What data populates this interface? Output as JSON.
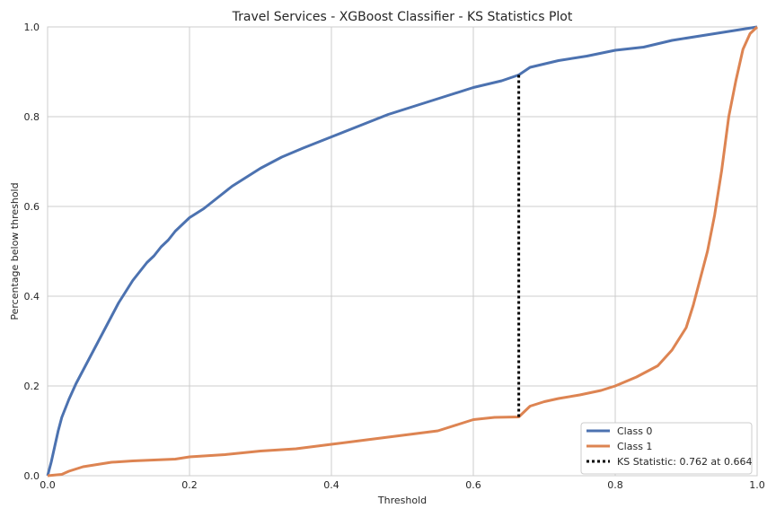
{
  "chart_data": {
    "type": "line",
    "title": "Travel Services - XGBoost Classifier - KS Statistics Plot",
    "xlabel": "Threshold",
    "ylabel": "Percentage below threshold",
    "xlim": [
      0,
      1
    ],
    "ylim": [
      0,
      1
    ],
    "xticks": [
      "0.0",
      "0.2",
      "0.4",
      "0.6",
      "0.8",
      "1.0"
    ],
    "yticks": [
      "0.0",
      "0.2",
      "0.4",
      "0.6",
      "0.8",
      "1.0"
    ],
    "grid": true,
    "legend_position": "lower-right",
    "series": [
      {
        "name": "Class 0",
        "color": "#4c72b0",
        "style": "solid",
        "points": [
          [
            0.0,
            0.0
          ],
          [
            0.005,
            0.03
          ],
          [
            0.01,
            0.065
          ],
          [
            0.015,
            0.1
          ],
          [
            0.02,
            0.13
          ],
          [
            0.03,
            0.17
          ],
          [
            0.04,
            0.205
          ],
          [
            0.05,
            0.235
          ],
          [
            0.06,
            0.265
          ],
          [
            0.07,
            0.295
          ],
          [
            0.08,
            0.325
          ],
          [
            0.09,
            0.355
          ],
          [
            0.1,
            0.385
          ],
          [
            0.11,
            0.41
          ],
          [
            0.12,
            0.435
          ],
          [
            0.13,
            0.455
          ],
          [
            0.14,
            0.475
          ],
          [
            0.15,
            0.49
          ],
          [
            0.16,
            0.51
          ],
          [
            0.17,
            0.525
          ],
          [
            0.18,
            0.545
          ],
          [
            0.19,
            0.56
          ],
          [
            0.2,
            0.575
          ],
          [
            0.22,
            0.595
          ],
          [
            0.24,
            0.62
          ],
          [
            0.26,
            0.645
          ],
          [
            0.28,
            0.665
          ],
          [
            0.3,
            0.685
          ],
          [
            0.33,
            0.71
          ],
          [
            0.36,
            0.73
          ],
          [
            0.4,
            0.755
          ],
          [
            0.44,
            0.78
          ],
          [
            0.48,
            0.805
          ],
          [
            0.52,
            0.825
          ],
          [
            0.56,
            0.845
          ],
          [
            0.6,
            0.865
          ],
          [
            0.64,
            0.88
          ],
          [
            0.664,
            0.893
          ],
          [
            0.68,
            0.91
          ],
          [
            0.72,
            0.925
          ],
          [
            0.76,
            0.935
          ],
          [
            0.8,
            0.948
          ],
          [
            0.84,
            0.955
          ],
          [
            0.88,
            0.97
          ],
          [
            0.92,
            0.98
          ],
          [
            0.96,
            0.99
          ],
          [
            1.0,
            1.0
          ]
        ]
      },
      {
        "name": "Class 1",
        "color": "#dd8452",
        "style": "solid",
        "points": [
          [
            0.0,
            0.0
          ],
          [
            0.02,
            0.003
          ],
          [
            0.03,
            0.01
          ],
          [
            0.05,
            0.02
          ],
          [
            0.07,
            0.025
          ],
          [
            0.09,
            0.03
          ],
          [
            0.12,
            0.033
          ],
          [
            0.15,
            0.035
          ],
          [
            0.18,
            0.037
          ],
          [
            0.2,
            0.042
          ],
          [
            0.25,
            0.047
          ],
          [
            0.3,
            0.055
          ],
          [
            0.35,
            0.06
          ],
          [
            0.4,
            0.07
          ],
          [
            0.45,
            0.08
          ],
          [
            0.5,
            0.09
          ],
          [
            0.55,
            0.1
          ],
          [
            0.58,
            0.115
          ],
          [
            0.6,
            0.125
          ],
          [
            0.63,
            0.13
          ],
          [
            0.664,
            0.131
          ],
          [
            0.68,
            0.155
          ],
          [
            0.7,
            0.165
          ],
          [
            0.72,
            0.172
          ],
          [
            0.75,
            0.18
          ],
          [
            0.78,
            0.19
          ],
          [
            0.8,
            0.2
          ],
          [
            0.83,
            0.22
          ],
          [
            0.86,
            0.245
          ],
          [
            0.88,
            0.28
          ],
          [
            0.9,
            0.33
          ],
          [
            0.91,
            0.38
          ],
          [
            0.92,
            0.44
          ],
          [
            0.93,
            0.5
          ],
          [
            0.94,
            0.58
          ],
          [
            0.95,
            0.68
          ],
          [
            0.96,
            0.8
          ],
          [
            0.97,
            0.88
          ],
          [
            0.98,
            0.95
          ],
          [
            0.99,
            0.985
          ],
          [
            1.0,
            1.0
          ]
        ]
      },
      {
        "name": "KS Statistic: 0.762 at 0.664",
        "color": "#000000",
        "style": "dotted",
        "points": [
          [
            0.664,
            0.131
          ],
          [
            0.664,
            0.893
          ]
        ]
      }
    ]
  }
}
